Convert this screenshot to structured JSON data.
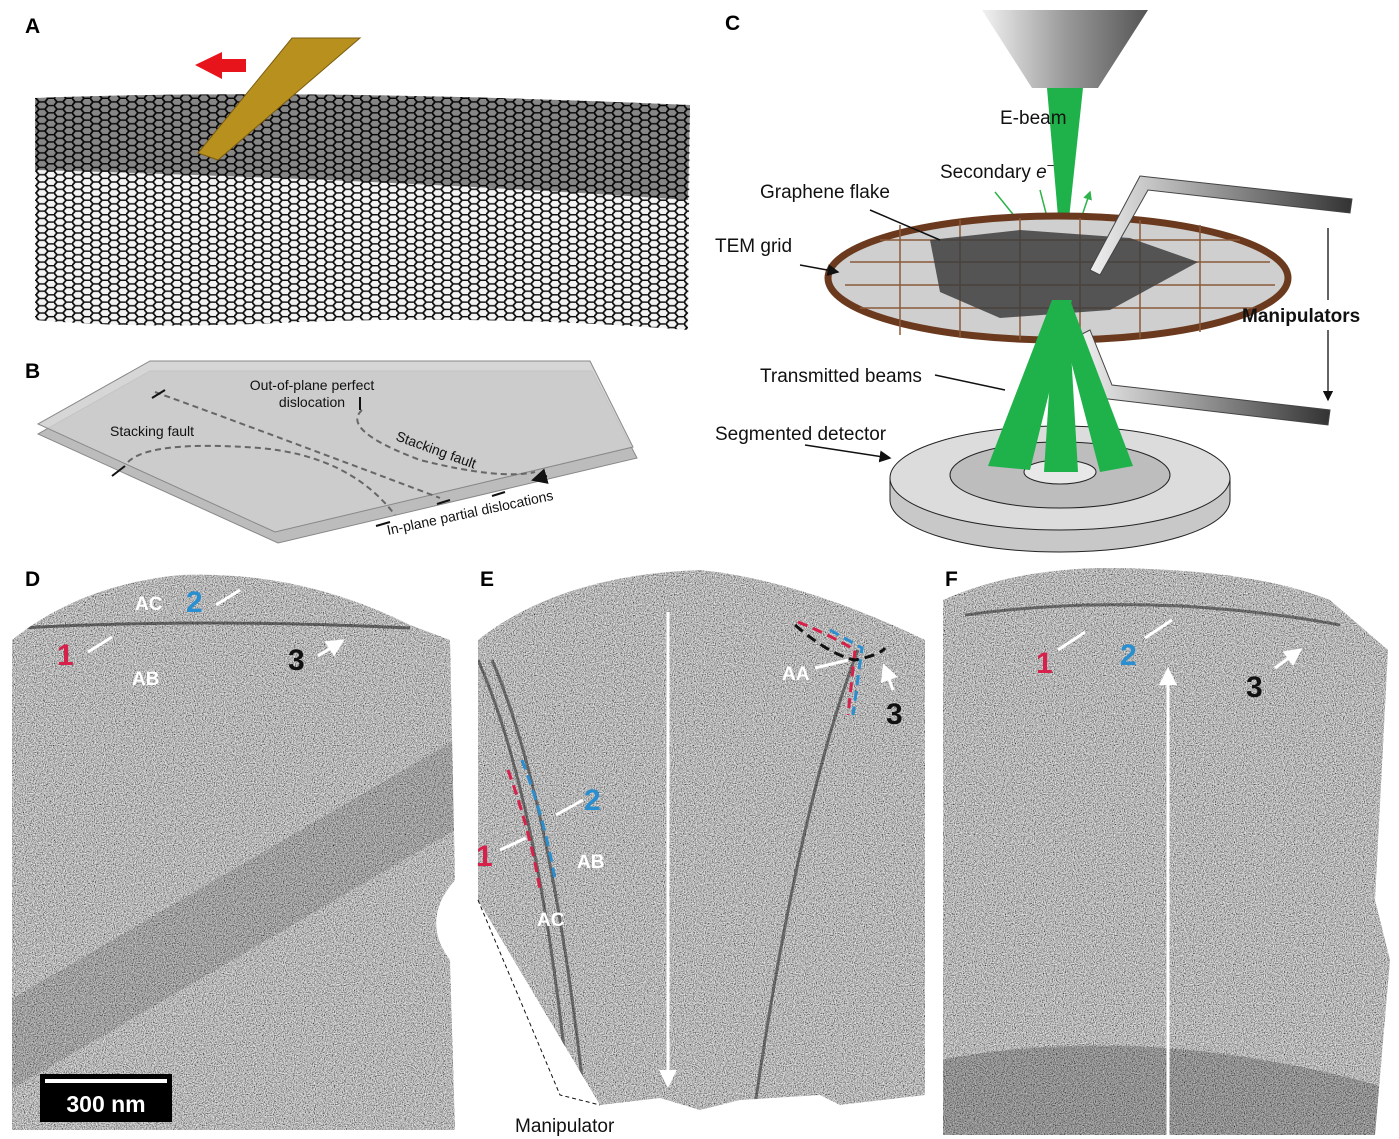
{
  "panel_A": {
    "label": "A"
  },
  "panel_B": {
    "label": "B",
    "perfect_dislocation": [
      "Out-of-plane perfect",
      "dislocation"
    ],
    "stacking_fault_left": "Stacking fault",
    "stacking_fault_right": "Stacking fault",
    "partial_dislocations": "In-plane partial dislocations"
  },
  "panel_C": {
    "label": "C",
    "e_beam": "E-beam",
    "secondary": {
      "text": "Secondary",
      "symbol": "e",
      "superscript": "−"
    },
    "graphene_flake": "Graphene flake",
    "tem_grid": "TEM grid",
    "manipulators": "Manipulators",
    "transmitted_beams": "Transmitted beams",
    "segmented_detector": "Segmented detector"
  },
  "panel_D": {
    "label": "D",
    "regions": [
      "AC",
      "AB"
    ],
    "markers": [
      "1",
      "2",
      "3"
    ],
    "scale_bar": "300 nm"
  },
  "panel_E": {
    "label": "E",
    "regions": [
      "AA",
      "AB",
      "AC"
    ],
    "markers": [
      "1",
      "2",
      "3"
    ],
    "manipulator": "Manipulator"
  },
  "panel_F": {
    "label": "F",
    "markers": [
      "1",
      "2",
      "3"
    ]
  }
}
